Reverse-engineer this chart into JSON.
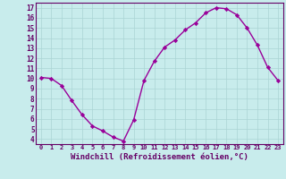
{
  "x": [
    0,
    1,
    2,
    3,
    4,
    5,
    6,
    7,
    8,
    9,
    10,
    11,
    12,
    13,
    14,
    15,
    16,
    17,
    18,
    19,
    20,
    21,
    22,
    23
  ],
  "y": [
    10.1,
    10.0,
    9.3,
    7.8,
    6.4,
    5.3,
    4.8,
    4.2,
    3.8,
    5.9,
    9.8,
    11.7,
    13.1,
    13.8,
    14.8,
    15.5,
    16.5,
    17.0,
    16.9,
    16.3,
    15.0,
    13.3,
    11.1,
    9.8
  ],
  "line_color": "#990099",
  "marker": "D",
  "markersize": 2.2,
  "linewidth": 1.0,
  "bg_color": "#c8ecec",
  "grid_color": "#aad4d4",
  "tick_color": "#660066",
  "xlabel": "Windchill (Refroidissement éolien,°C)",
  "yticks": [
    4,
    5,
    6,
    7,
    8,
    9,
    10,
    11,
    12,
    13,
    14,
    15,
    16,
    17
  ],
  "xticks": [
    0,
    1,
    2,
    3,
    4,
    5,
    6,
    7,
    8,
    9,
    10,
    11,
    12,
    13,
    14,
    15,
    16,
    17,
    18,
    19,
    20,
    21,
    22,
    23
  ],
  "ylim": [
    3.5,
    17.5
  ],
  "xlim": [
    -0.5,
    23.5
  ]
}
